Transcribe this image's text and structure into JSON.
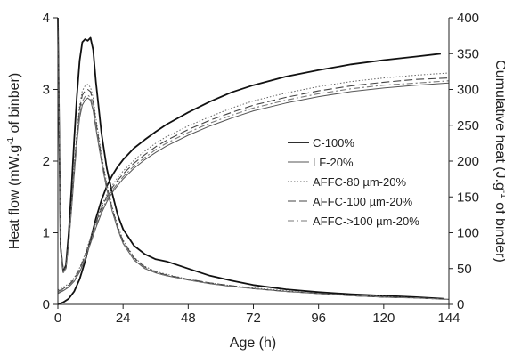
{
  "chart_data": {
    "type": "line",
    "xlabel": "Age (h)",
    "ylabel_left": "Heat flow (mW.g-1 of binber)",
    "ylabel_left_parts": {
      "pre": "Heat flow (mW.g",
      "sup": "-1",
      "post": " of binber)"
    },
    "ylabel_right": "Cumulative heat (J.g-1 of binder)",
    "ylabel_right_parts": {
      "pre": "Cumulative heat (J.g",
      "sup": "-1",
      "post": " of binder)"
    },
    "xlim": [
      0,
      144
    ],
    "ylim_left": [
      0,
      4
    ],
    "ylim_right": [
      0,
      400
    ],
    "xticks": [
      "0",
      "24",
      "48",
      "72",
      "96",
      "120",
      "144"
    ],
    "yticks_left": [
      "0",
      "1",
      "2",
      "3",
      "4"
    ],
    "yticks_right": [
      "0",
      "50",
      "100",
      "150",
      "200",
      "250",
      "300",
      "350",
      "400"
    ],
    "grid": false,
    "legend_position": "center-right",
    "series": [
      {
        "name": "C-100%",
        "style": "solid-thick",
        "heat_flow": {
          "x": [
            0,
            1,
            2,
            3,
            4,
            5,
            6,
            7,
            8,
            9,
            10,
            11,
            12,
            13,
            14,
            16,
            18,
            20,
            22,
            24,
            28,
            32,
            36,
            40,
            48,
            56,
            64,
            72,
            84,
            96,
            108,
            120,
            132,
            142
          ],
          "y": [
            4.0,
            0.8,
            0.45,
            0.55,
            1.0,
            1.6,
            2.3,
            2.9,
            3.4,
            3.66,
            3.7,
            3.68,
            3.72,
            3.55,
            3.1,
            2.4,
            1.9,
            1.55,
            1.25,
            1.05,
            0.82,
            0.7,
            0.63,
            0.6,
            0.5,
            0.4,
            0.33,
            0.27,
            0.21,
            0.17,
            0.14,
            0.12,
            0.1,
            0.08
          ]
        },
        "cumulative": {
          "x": [
            0,
            2,
            4,
            6,
            8,
            10,
            12,
            14,
            16,
            18,
            20,
            22,
            24,
            28,
            32,
            36,
            40,
            48,
            56,
            64,
            72,
            84,
            96,
            108,
            120,
            132,
            141
          ],
          "y": [
            0,
            3,
            8,
            18,
            35,
            60,
            90,
            120,
            145,
            165,
            180,
            192,
            202,
            218,
            230,
            241,
            251,
            268,
            283,
            296,
            306,
            318,
            327,
            335,
            341,
            346,
            350
          ]
        }
      },
      {
        "name": "LF-20%",
        "style": "solid-thin",
        "heat_flow": {
          "x": [
            0,
            1,
            2,
            3,
            4,
            5,
            6,
            7,
            8,
            9,
            10,
            11,
            12,
            13,
            14,
            16,
            18,
            20,
            22,
            24,
            28,
            32,
            36,
            40,
            48,
            56,
            64,
            72,
            84,
            96,
            108,
            120,
            132,
            144
          ],
          "y": [
            4.0,
            0.8,
            0.45,
            0.5,
            0.85,
            1.3,
            1.8,
            2.25,
            2.6,
            2.78,
            2.85,
            2.88,
            2.85,
            2.7,
            2.45,
            2.0,
            1.6,
            1.3,
            1.05,
            0.85,
            0.62,
            0.5,
            0.44,
            0.4,
            0.34,
            0.29,
            0.25,
            0.22,
            0.18,
            0.15,
            0.12,
            0.1,
            0.09,
            0.07
          ]
        },
        "cumulative": {
          "x": [
            0,
            2,
            4,
            6,
            8,
            10,
            12,
            14,
            16,
            18,
            20,
            22,
            24,
            28,
            32,
            36,
            40,
            48,
            56,
            64,
            72,
            84,
            96,
            108,
            120,
            132,
            144
          ],
          "y": [
            15,
            19,
            24,
            32,
            45,
            63,
            85,
            107,
            127,
            143,
            156,
            166,
            175,
            190,
            202,
            212,
            221,
            236,
            249,
            260,
            270,
            281,
            290,
            297,
            302,
            306,
            309
          ]
        }
      },
      {
        "name": "AFFC-80 µm-20%",
        "style": "dotted",
        "heat_flow": {
          "x": [
            0,
            1,
            2,
            3,
            4,
            5,
            6,
            7,
            8,
            9,
            10,
            11,
            12,
            13,
            14,
            16,
            18,
            20,
            22,
            24,
            28,
            32,
            36,
            40,
            48,
            56,
            64,
            72,
            84,
            96,
            108,
            120,
            132,
            144
          ],
          "y": [
            4.0,
            0.82,
            0.47,
            0.52,
            0.9,
            1.4,
            1.95,
            2.4,
            2.78,
            2.98,
            3.05,
            3.07,
            3.03,
            2.88,
            2.6,
            2.1,
            1.68,
            1.36,
            1.1,
            0.9,
            0.66,
            0.53,
            0.46,
            0.42,
            0.35,
            0.3,
            0.26,
            0.23,
            0.19,
            0.15,
            0.13,
            0.11,
            0.09,
            0.07
          ]
        },
        "cumulative": {
          "x": [
            0,
            2,
            4,
            6,
            8,
            10,
            12,
            14,
            16,
            18,
            20,
            22,
            24,
            28,
            32,
            36,
            40,
            48,
            56,
            64,
            72,
            84,
            96,
            108,
            120,
            132,
            144
          ],
          "y": [
            20,
            24,
            29,
            37,
            51,
            70,
            93,
            116,
            137,
            153,
            166,
            177,
            186,
            201,
            214,
            225,
            234,
            249,
            262,
            274,
            284,
            295,
            304,
            311,
            316,
            320,
            323
          ]
        }
      },
      {
        "name": "AFFC-100 µm-20%",
        "style": "long-dash",
        "heat_flow": {
          "x": [
            0,
            1,
            2,
            3,
            4,
            5,
            6,
            7,
            8,
            9,
            10,
            11,
            12,
            13,
            14,
            16,
            18,
            20,
            22,
            24,
            28,
            32,
            36,
            40,
            48,
            56,
            64,
            72,
            84,
            96,
            108,
            120,
            132,
            144
          ],
          "y": [
            4.0,
            0.82,
            0.46,
            0.51,
            0.88,
            1.37,
            1.9,
            2.36,
            2.72,
            2.92,
            2.98,
            3.0,
            2.97,
            2.82,
            2.55,
            2.06,
            1.65,
            1.34,
            1.08,
            0.88,
            0.65,
            0.52,
            0.45,
            0.41,
            0.35,
            0.3,
            0.26,
            0.22,
            0.18,
            0.15,
            0.12,
            0.1,
            0.09,
            0.07
          ]
        },
        "cumulative": {
          "x": [
            0,
            2,
            4,
            6,
            8,
            10,
            12,
            14,
            16,
            18,
            20,
            22,
            24,
            28,
            32,
            36,
            40,
            48,
            56,
            64,
            72,
            84,
            96,
            108,
            120,
            132,
            144
          ],
          "y": [
            18,
            22,
            27,
            35,
            49,
            68,
            91,
            114,
            134,
            150,
            163,
            173,
            182,
            197,
            209,
            220,
            229,
            244,
            257,
            268,
            278,
            289,
            298,
            305,
            310,
            314,
            316
          ]
        }
      },
      {
        "name": "AFFC->100 µm-20%",
        "style": "dash-dot",
        "heat_flow": {
          "x": [
            0,
            1,
            2,
            3,
            4,
            5,
            6,
            7,
            8,
            9,
            10,
            11,
            12,
            13,
            14,
            16,
            18,
            20,
            22,
            24,
            28,
            32,
            36,
            40,
            48,
            56,
            64,
            72,
            84,
            96,
            108,
            120,
            132,
            144
          ],
          "y": [
            4.0,
            0.8,
            0.45,
            0.5,
            0.86,
            1.33,
            1.84,
            2.3,
            2.65,
            2.83,
            2.9,
            2.92,
            2.89,
            2.74,
            2.48,
            2.02,
            1.62,
            1.31,
            1.06,
            0.86,
            0.63,
            0.51,
            0.44,
            0.4,
            0.34,
            0.29,
            0.25,
            0.22,
            0.18,
            0.15,
            0.12,
            0.1,
            0.09,
            0.07
          ]
        },
        "cumulative": {
          "x": [
            0,
            2,
            4,
            6,
            8,
            10,
            12,
            14,
            16,
            18,
            20,
            22,
            24,
            28,
            32,
            36,
            40,
            48,
            56,
            64,
            72,
            84,
            96,
            108,
            120,
            132,
            144
          ],
          "y": [
            16,
            20,
            25,
            33,
            47,
            65,
            87,
            110,
            130,
            146,
            159,
            169,
            178,
            193,
            205,
            216,
            225,
            240,
            253,
            264,
            274,
            285,
            294,
            301,
            306,
            309,
            312
          ]
        }
      }
    ]
  }
}
